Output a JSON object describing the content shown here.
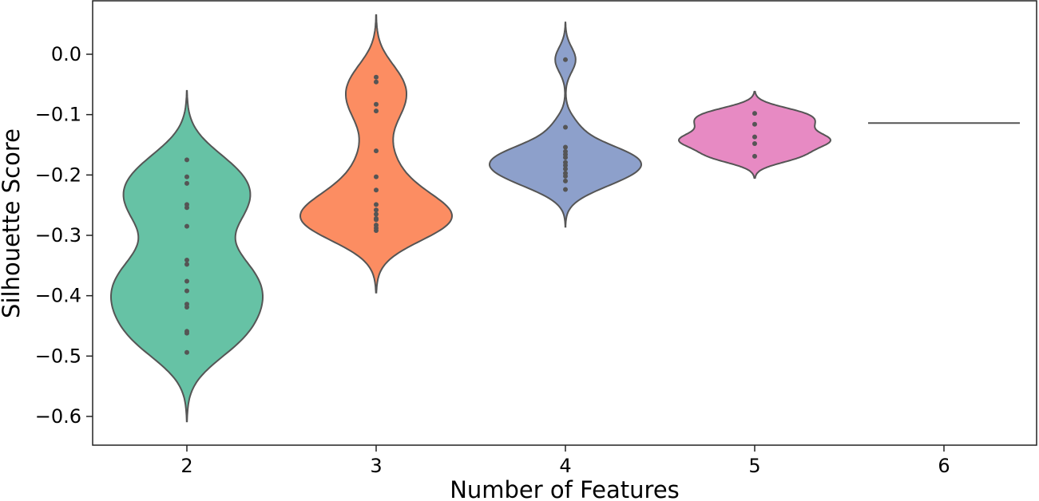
{
  "chart_data": {
    "type": "violin",
    "title": "",
    "xlabel": "Number of Features",
    "ylabel": "Silhouette Score",
    "ylim": [
      -0.65,
      0.09
    ],
    "yticks": [
      0.0,
      -0.1,
      -0.2,
      -0.3,
      -0.4,
      -0.5,
      -0.6
    ],
    "ytick_labels": [
      "0.0",
      "−0.1",
      "−0.2",
      "−0.3",
      "−0.4",
      "−0.5",
      "−0.6"
    ],
    "categories": [
      "2",
      "3",
      "4",
      "5",
      "6"
    ],
    "grid": false,
    "legend": "none",
    "series": [
      {
        "category": "2",
        "color": "#66c2a5",
        "points": [
          -0.175,
          -0.203,
          -0.214,
          -0.249,
          -0.254,
          -0.285,
          -0.341,
          -0.348,
          -0.376,
          -0.392,
          -0.414,
          -0.419,
          -0.459,
          -0.462,
          -0.494
        ]
      },
      {
        "category": "3",
        "color": "#fc8d62",
        "points": [
          -0.038,
          -0.046,
          -0.083,
          -0.094,
          -0.16,
          -0.203,
          -0.225,
          -0.249,
          -0.258,
          -0.265,
          -0.272,
          -0.274,
          -0.283,
          -0.288,
          -0.292
        ]
      },
      {
        "category": "4",
        "color": "#8da0cb",
        "points": [
          -0.009,
          -0.121,
          -0.154,
          -0.161,
          -0.166,
          -0.171,
          -0.179,
          -0.184,
          -0.19,
          -0.197,
          -0.202,
          -0.21,
          -0.224
        ]
      },
      {
        "category": "5",
        "color": "#e78ac3",
        "points": [
          -0.098,
          -0.116,
          -0.137,
          -0.148,
          -0.169
        ]
      },
      {
        "category": "6",
        "color": "#555555",
        "points": [
          -0.114
        ]
      }
    ]
  }
}
